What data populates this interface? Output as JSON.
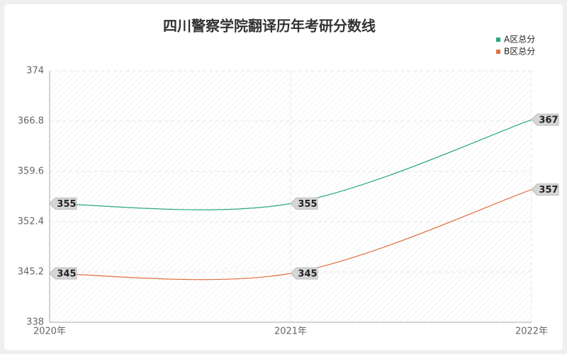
{
  "chart_data": {
    "type": "line",
    "title": "四川警察学院翻译历年考研分数线",
    "categories": [
      "2020年",
      "2021年",
      "2022年"
    ],
    "series": [
      {
        "name": "A区总分",
        "color": "#2aa87e",
        "values": [
          355,
          355,
          367
        ]
      },
      {
        "name": "B区总分",
        "color": "#e0703f",
        "values": [
          345,
          345,
          357
        ]
      }
    ],
    "ylim": [
      338,
      374
    ],
    "yticks": [
      338,
      345.2,
      352.4,
      359.6,
      366.8,
      374
    ],
    "grid": true,
    "legend": "top-right"
  }
}
